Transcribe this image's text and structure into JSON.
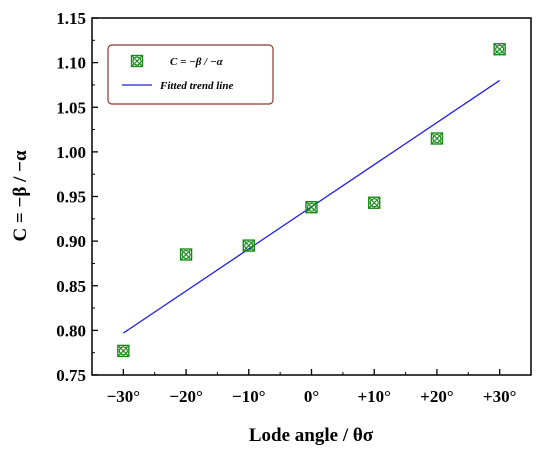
{
  "chart_data": {
    "type": "scatter",
    "xlabel": "Lode angle /  θσ",
    "ylabel": "C = −β / −α",
    "x_ticks": [
      "−30°",
      "−20°",
      "−10°",
      "0°",
      "+10°",
      "+20°",
      "+30°"
    ],
    "y_ticks": [
      "0.75",
      "0.80",
      "0.85",
      "0.90",
      "0.95",
      "1.00",
      "1.05",
      "1.10",
      "1.15"
    ],
    "xlim": [
      -35,
      35
    ],
    "ylim": [
      0.75,
      1.15
    ],
    "grid": false,
    "legend_position": "top-left",
    "series": [
      {
        "name": "C = −β / −α",
        "marker": "square-x-circle",
        "color": "#1a8a1a",
        "points": [
          {
            "x": -30,
            "y": 0.777
          },
          {
            "x": -20,
            "y": 0.885
          },
          {
            "x": -10,
            "y": 0.895
          },
          {
            "x": 0,
            "y": 0.938
          },
          {
            "x": 10,
            "y": 0.943
          },
          {
            "x": 20,
            "y": 1.015
          },
          {
            "x": 30,
            "y": 1.115
          }
        ]
      },
      {
        "name": "Fitted trend line",
        "type": "line",
        "color": "#1f1fe0",
        "points": [
          {
            "x": -30,
            "y": 0.797
          },
          {
            "x": 30,
            "y": 1.08
          }
        ]
      }
    ]
  }
}
